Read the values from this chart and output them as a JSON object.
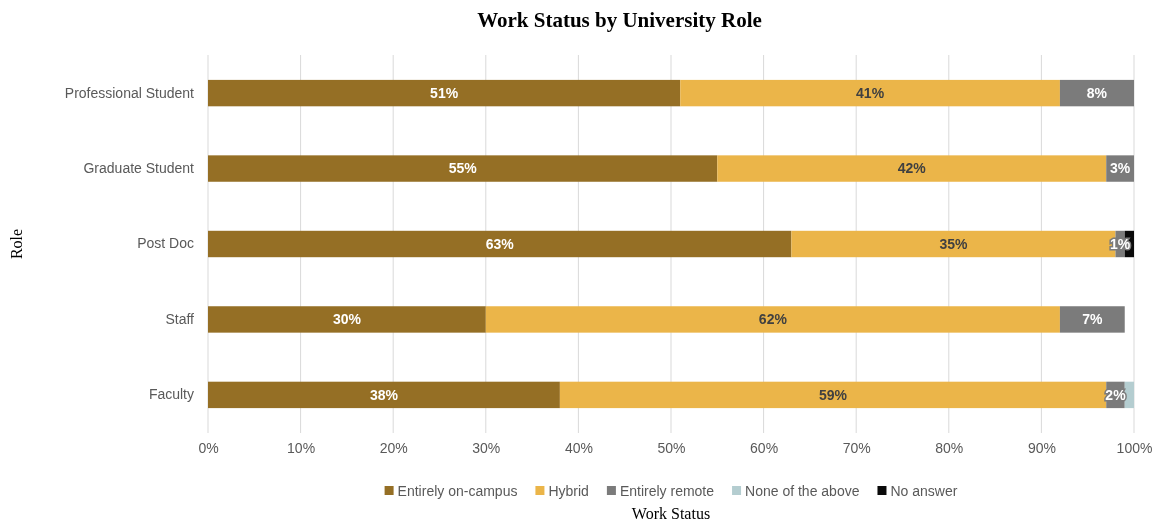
{
  "chart_data": {
    "type": "bar",
    "orientation": "horizontal",
    "stacked": true,
    "title": "Work Status by University Role",
    "xlabel": "Work Status",
    "ylabel": "Role",
    "categories": [
      "Professional Student",
      "Graduate Student",
      "Post Doc",
      "Staff",
      "Faculty"
    ],
    "series": [
      {
        "name": "Entirely on-campus",
        "color": "#956f25",
        "values": [
          51,
          55,
          63,
          30,
          38
        ],
        "value_labels": [
          "51%",
          "55%",
          "63%",
          "30%",
          "38%"
        ]
      },
      {
        "name": "Hybrid",
        "color": "#ebb549",
        "values": [
          41,
          42,
          35,
          62,
          59
        ],
        "value_labels": [
          "41%",
          "42%",
          "35%",
          "62%",
          "59%"
        ]
      },
      {
        "name": "Entirely remote",
        "color": "#7b7b7b",
        "values": [
          8,
          3,
          1,
          7,
          2
        ],
        "value_labels": [
          "8%",
          "3%",
          "1%",
          "7%",
          "2%"
        ]
      },
      {
        "name": "None of the above",
        "color": "#b4cdd0",
        "values": [
          null,
          null,
          null,
          null,
          1
        ],
        "value_labels": [
          null,
          null,
          null,
          null,
          null
        ]
      },
      {
        "name": "No answer",
        "color": "#0a0a0a",
        "values": [
          null,
          null,
          1,
          null,
          null
        ],
        "value_labels": [
          null,
          null,
          null,
          null,
          null
        ]
      }
    ],
    "xlim": [
      0,
      100
    ],
    "xticks": [
      {
        "value": 0,
        "label": "0%"
      },
      {
        "value": 10,
        "label": "10%"
      },
      {
        "value": 20,
        "label": "20%"
      },
      {
        "value": 30,
        "label": "30%"
      },
      {
        "value": 40,
        "label": "40%"
      },
      {
        "value": 50,
        "label": "50%"
      },
      {
        "value": 60,
        "label": "60%"
      },
      {
        "value": 70,
        "label": "70%"
      },
      {
        "value": 80,
        "label": "80%"
      },
      {
        "value": 90,
        "label": "90%"
      },
      {
        "value": 100,
        "label": "100%"
      }
    ],
    "grid": "x",
    "legend": "bottom"
  }
}
